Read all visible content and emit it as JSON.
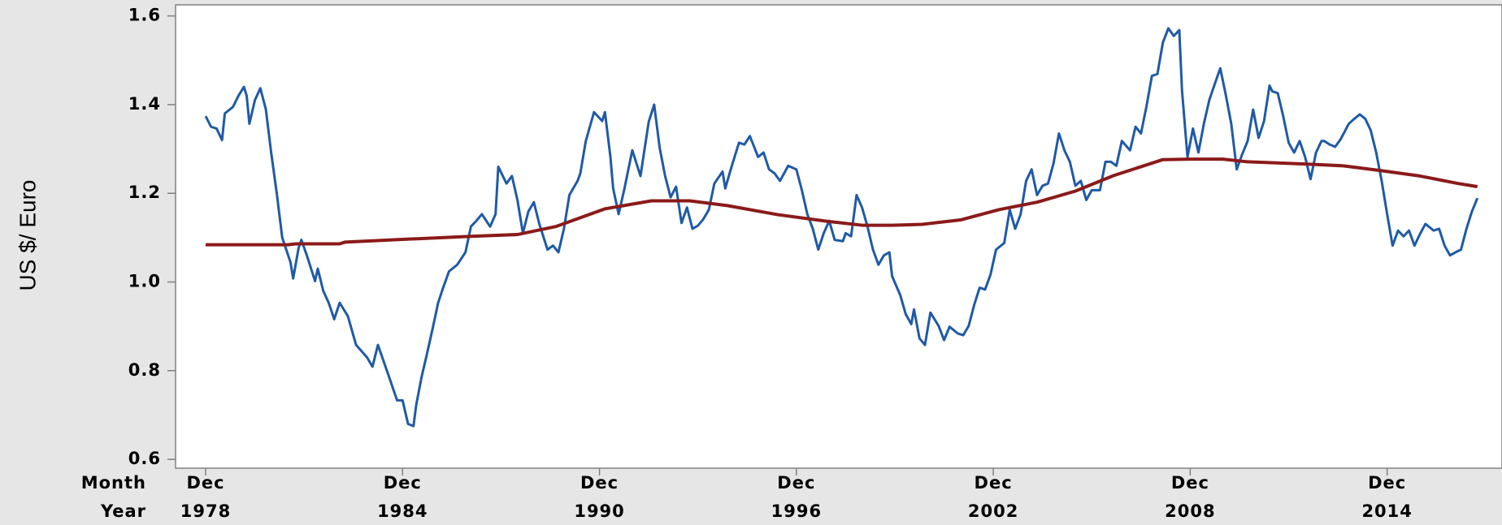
{
  "chart_data": {
    "type": "line",
    "y_label": "US $/ Euro",
    "xlim": [
      "1978-01",
      "2018-06"
    ],
    "xticks": [
      "1978-12",
      "1984-12",
      "1990-12",
      "1996-12",
      "2002-12",
      "2008-12",
      "2014-12"
    ],
    "xtick_row_labels": [
      "Month",
      "Year"
    ],
    "xtick_month_labels": [
      "Dec",
      "Dec",
      "Dec",
      "Dec",
      "Dec",
      "Dec",
      "Dec"
    ],
    "xtick_year_labels": [
      "1978",
      "1984",
      "1990",
      "1996",
      "2002",
      "2008",
      "2014"
    ],
    "ylim": [
      0.58,
      1.625
    ],
    "yticks": [
      0.6,
      0.8,
      {
        "value": 1,
        "label": "1.0"
      },
      1.2,
      1.4,
      1.6
    ],
    "series": [
      {
        "color": "#1f5aa6",
        "x": [
          "1978-12",
          "1979-02",
          "1979-04",
          "1979-06",
          "1979-07",
          "1979-10",
          "1979-12",
          "1980-02",
          "1980-03",
          "1980-04",
          "1980-06",
          "1980-08",
          "1980-10",
          "1980-12",
          "1981-02",
          "1981-04",
          "1981-07",
          "1981-08",
          "1981-10",
          "1981-11",
          "1982-01",
          "1982-04",
          "1982-05",
          "1982-07",
          "1982-09",
          "1982-11",
          "1983-01",
          "1983-04",
          "1983-07",
          "1983-11",
          "1984-01",
          "1984-03",
          "1984-07",
          "1984-10",
          "1984-12",
          "1985-02",
          "1985-04",
          "1985-05",
          "1985-07",
          "1985-09",
          "1985-11",
          "1986-01",
          "1986-03",
          "1986-05",
          "1986-08",
          "1986-11",
          "1987-01",
          "1987-03",
          "1987-05",
          "1987-08",
          "1987-10",
          "1987-11",
          "1988-02",
          "1988-04",
          "1988-06",
          "1988-08",
          "1988-10",
          "1988-12",
          "1989-02",
          "1989-05",
          "1989-07",
          "1989-09",
          "1989-11",
          "1990-01",
          "1990-04",
          "1990-05",
          "1990-07",
          "1990-10",
          "1991-01",
          "1991-02",
          "1991-04",
          "1991-05",
          "1991-07",
          "1991-09",
          "1991-12",
          "1992-03",
          "1992-06",
          "1992-08",
          "1992-10",
          "1992-12",
          "1993-02",
          "1993-04",
          "1993-06",
          "1993-08",
          "1993-10",
          "1993-12",
          "1994-02",
          "1994-04",
          "1994-06",
          "1994-09",
          "1994-10",
          "1994-12",
          "1995-03",
          "1995-05",
          "1995-07",
          "1995-10",
          "1995-12",
          "1996-02",
          "1996-04",
          "1996-06",
          "1996-09",
          "1996-12",
          "1997-02",
          "1997-04",
          "1997-06",
          "1997-08",
          "1997-10",
          "1997-12",
          "1998-02",
          "1998-05",
          "1998-06",
          "1998-08",
          "1998-10",
          "1998-12",
          "1999-02",
          "1999-04",
          "1999-06",
          "1999-08",
          "1999-10",
          "1999-11",
          "2000-02",
          "2000-04",
          "2000-06",
          "2000-07",
          "2000-09",
          "2000-11",
          "2001-01",
          "2001-04",
          "2001-06",
          "2001-08",
          "2001-11",
          "2002-01",
          "2002-03",
          "2002-05",
          "2002-07",
          "2002-09",
          "2002-11",
          "2003-01",
          "2003-04",
          "2003-06",
          "2003-08",
          "2003-10",
          "2003-12",
          "2004-02",
          "2004-04",
          "2004-06",
          "2004-08",
          "2004-10",
          "2004-12",
          "2005-02",
          "2005-04",
          "2005-06",
          "2005-08",
          "2005-10",
          "2005-12",
          "2006-03",
          "2006-05",
          "2006-07",
          "2006-09",
          "2006-11",
          "2007-02",
          "2007-04",
          "2007-06",
          "2007-08",
          "2007-10",
          "2007-12",
          "2008-02",
          "2008-04",
          "2008-06",
          "2008-08",
          "2008-09",
          "2008-11",
          "2009-01",
          "2009-03",
          "2009-05",
          "2009-07",
          "2009-09",
          "2009-11",
          "2010-01",
          "2010-03",
          "2010-05",
          "2010-07",
          "2010-09",
          "2010-11",
          "2011-01",
          "2011-03",
          "2011-05",
          "2011-06",
          "2011-08",
          "2011-10",
          "2011-12",
          "2012-02",
          "2012-04",
          "2012-06",
          "2012-08",
          "2012-10",
          "2012-12",
          "2013-01",
          "2013-03",
          "2013-05",
          "2013-07",
          "2013-10",
          "2013-12",
          "2014-02",
          "2014-04",
          "2014-06",
          "2014-08",
          "2014-10",
          "2014-12",
          "2015-02",
          "2015-04",
          "2015-06",
          "2015-08",
          "2015-10",
          "2015-12",
          "2016-02",
          "2016-05",
          "2016-07",
          "2016-09",
          "2016-11",
          "2017-01",
          "2017-03",
          "2017-05",
          "2017-07",
          "2017-09"
        ],
        "values": [
          1.374,
          1.35,
          1.346,
          1.32,
          1.38,
          1.395,
          1.42,
          1.44,
          1.42,
          1.357,
          1.41,
          1.437,
          1.39,
          1.29,
          1.2,
          1.1,
          1.045,
          1.008,
          1.077,
          1.095,
          1.06,
          1.002,
          1.03,
          0.98,
          0.953,
          0.916,
          0.953,
          0.923,
          0.858,
          0.83,
          0.809,
          0.858,
          0.787,
          0.733,
          0.733,
          0.68,
          0.675,
          0.723,
          0.787,
          0.84,
          0.895,
          0.953,
          0.99,
          1.024,
          1.039,
          1.067,
          1.125,
          1.138,
          1.153,
          1.125,
          1.153,
          1.26,
          1.222,
          1.239,
          1.185,
          1.11,
          1.159,
          1.18,
          1.131,
          1.073,
          1.082,
          1.067,
          1.12,
          1.196,
          1.228,
          1.245,
          1.318,
          1.383,
          1.363,
          1.383,
          1.282,
          1.211,
          1.153,
          1.207,
          1.297,
          1.239,
          1.361,
          1.4,
          1.303,
          1.239,
          1.191,
          1.215,
          1.133,
          1.168,
          1.12,
          1.127,
          1.142,
          1.163,
          1.222,
          1.249,
          1.211,
          1.254,
          1.314,
          1.31,
          1.329,
          1.282,
          1.292,
          1.254,
          1.245,
          1.228,
          1.262,
          1.254,
          1.207,
          1.153,
          1.12,
          1.073,
          1.11,
          1.138,
          1.095,
          1.092,
          1.11,
          1.103,
          1.196,
          1.168,
          1.125,
          1.073,
          1.039,
          1.06,
          1.067,
          1.013,
          0.97,
          0.927,
          0.905,
          0.938,
          0.873,
          0.858,
          0.931,
          0.901,
          0.869,
          0.899,
          0.884,
          0.88,
          0.901,
          0.948,
          0.987,
          0.983,
          1.017,
          1.073,
          1.088,
          1.163,
          1.12,
          1.153,
          1.228,
          1.254,
          1.196,
          1.217,
          1.222,
          1.267,
          1.335,
          1.297,
          1.271,
          1.217,
          1.228,
          1.185,
          1.207,
          1.207,
          1.271,
          1.271,
          1.262,
          1.318,
          1.297,
          1.35,
          1.335,
          1.396,
          1.465,
          1.469,
          1.54,
          1.572,
          1.555,
          1.568,
          1.432,
          1.282,
          1.346,
          1.292,
          1.357,
          1.411,
          1.447,
          1.482,
          1.422,
          1.357,
          1.254,
          1.288,
          1.318,
          1.389,
          1.325,
          1.363,
          1.443,
          1.43,
          1.426,
          1.374,
          1.314,
          1.292,
          1.318,
          1.282,
          1.232,
          1.292,
          1.318,
          1.318,
          1.31,
          1.305,
          1.322,
          1.357,
          1.368,
          1.378,
          1.368,
          1.342,
          1.292,
          1.228,
          1.153,
          1.082,
          1.116,
          1.103,
          1.116,
          1.082,
          1.108,
          1.131,
          1.116,
          1.12,
          1.082,
          1.06,
          1.067,
          1.073,
          1.12,
          1.159,
          1.189
        ]
      },
      {
        "color": "#8b1a1a",
        "x": [
          "1978-12",
          "1981-06",
          "1981-09",
          "1983-01",
          "1983-03",
          "1984-12",
          "1987-01",
          "1988-06",
          "1989-08",
          "1991-02",
          "1992-07",
          "1993-09",
          "1994-11",
          "1996-05",
          "1997-11",
          "1998-12",
          "1999-11",
          "2000-10",
          "2001-12",
          "2003-02",
          "2004-04",
          "2005-06",
          "2006-08",
          "2007-06",
          "2008-02",
          "2008-12",
          "2009-12",
          "2010-09",
          "2012-06",
          "2013-08",
          "2014-10",
          "2015-12",
          "2017-02",
          "2017-09"
        ],
        "values": [
          1.084,
          1.084,
          1.086,
          1.086,
          1.09,
          1.096,
          1.103,
          1.107,
          1.125,
          1.165,
          1.183,
          1.183,
          1.172,
          1.152,
          1.137,
          1.128,
          1.128,
          1.13,
          1.14,
          1.163,
          1.18,
          1.205,
          1.24,
          1.26,
          1.276,
          1.277,
          1.277,
          1.271,
          1.266,
          1.262,
          1.251,
          1.239,
          1.222,
          1.215
        ]
      }
    ]
  }
}
